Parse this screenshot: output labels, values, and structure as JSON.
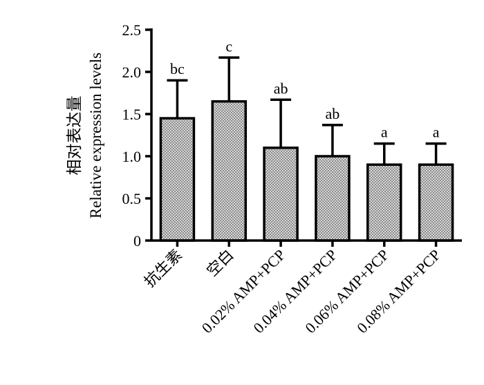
{
  "chart_data": {
    "type": "bar",
    "title": "",
    "xlabel": "",
    "ylabel": "相对表达量",
    "ylabel_en": "Relative expression levels",
    "ylim": [
      0,
      2.5
    ],
    "yticks": [
      "0",
      "0.5",
      "1.0",
      "1.5",
      "2.0",
      "2.5"
    ],
    "ytick_values": [
      0,
      0.5,
      1.0,
      1.5,
      2.0,
      2.5
    ],
    "grid": false,
    "legend": "none",
    "bar_pattern": "checkered",
    "bar_colors": [
      "#8c8c8c",
      "#d8d8d8"
    ],
    "categories": [
      "抗生素",
      "空白",
      "0.02% AMP+PCP",
      "0.04% AMP+PCP",
      "0.06% AMP+PCP",
      "0.08% AMP+PCP"
    ],
    "values": [
      1.45,
      1.65,
      1.1,
      1.0,
      0.9,
      0.9
    ],
    "error_upper": [
      0.45,
      0.52,
      0.57,
      0.37,
      0.25,
      0.25
    ],
    "significance": [
      "bc",
      "c",
      "ab",
      "ab",
      "a",
      "a"
    ]
  }
}
